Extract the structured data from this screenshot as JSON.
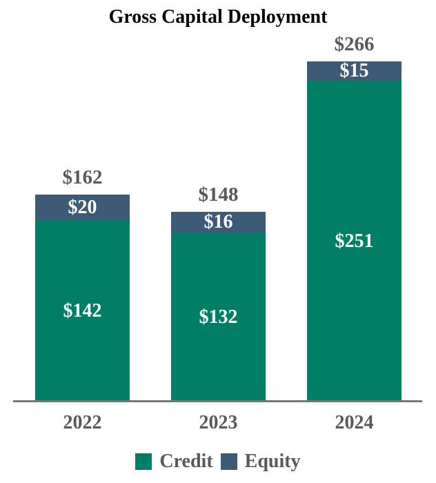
{
  "chart_data": {
    "type": "bar",
    "stacked": true,
    "title": "Gross Capital Deployment",
    "categories": [
      "2022",
      "2023",
      "2024"
    ],
    "series": [
      {
        "name": "Credit",
        "color": "#007F66",
        "values": [
          142,
          132,
          251
        ],
        "labels": [
          "$142",
          "$132",
          "$251"
        ]
      },
      {
        "name": "Equity",
        "color": "#3D5A76",
        "values": [
          20,
          16,
          15
        ],
        "labels": [
          "$20",
          "$16",
          "$15"
        ]
      }
    ],
    "totals": [
      162,
      148,
      266
    ],
    "total_labels": [
      "$162",
      "$148",
      "$266"
    ],
    "value_prefix": "$",
    "xlabel": "",
    "ylabel": "",
    "ylim": [
      0,
      280
    ],
    "grid": false,
    "y_axis_visible": false,
    "legend_position": "bottom"
  },
  "colors": {
    "credit": "#007F66",
    "equity": "#3D5A76",
    "label_gray": "#595959",
    "bar_value_text": "#FFFFFF",
    "title_text": "#000000",
    "axis_line": "#757575",
    "background": "#FFFFFF"
  }
}
